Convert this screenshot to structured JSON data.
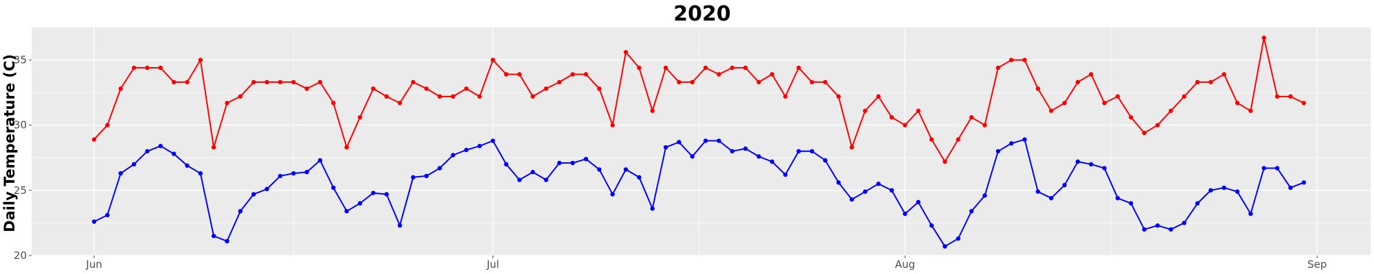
{
  "chart_data": {
    "type": "line",
    "title": "2020",
    "xlabel": "",
    "ylabel": "Daily Temperature (C)",
    "ylim": [
      20,
      37.5
    ],
    "y_ticks": [
      20,
      25,
      30,
      35
    ],
    "x_ticks": [
      {
        "label": "Jun",
        "day": 0
      },
      {
        "label": "Jul",
        "day": 30
      },
      {
        "label": "Aug",
        "day": 61
      },
      {
        "label": "Sep",
        "day": 92
      }
    ],
    "xlim_days": [
      -1.5,
      94
    ],
    "x_start_label": "Jun 1",
    "grid": true,
    "background": "#EBEBEB",
    "series": [
      {
        "color": "#FF0000",
        "values": [
          28.9,
          30.0,
          32.8,
          34.4,
          34.4,
          34.4,
          33.3,
          33.3,
          35.0,
          28.3,
          31.7,
          32.2,
          33.3,
          33.3,
          33.3,
          33.3,
          32.8,
          33.3,
          31.7,
          28.3,
          30.6,
          32.8,
          32.2,
          31.7,
          33.3,
          32.8,
          32.2,
          32.2,
          32.8,
          32.2,
          35.0,
          33.9,
          33.9,
          32.2,
          32.8,
          33.3,
          33.9,
          33.9,
          32.8,
          30.0,
          35.6,
          34.4,
          31.1,
          34.4,
          33.3,
          33.3,
          34.4,
          33.9,
          34.4,
          34.4,
          33.3,
          33.9,
          32.2,
          34.4,
          33.3,
          33.3,
          32.2,
          28.3,
          31.1,
          32.2,
          30.6,
          30.0,
          31.1,
          28.9,
          27.2,
          28.9,
          30.6,
          30.0,
          34.4,
          35.0,
          35.0,
          32.8,
          31.1,
          31.7,
          33.3,
          33.9,
          31.7,
          32.2,
          30.6,
          29.4,
          30.0,
          31.1,
          32.2,
          33.3,
          33.3,
          33.9,
          31.7,
          31.1,
          36.7,
          32.2,
          32.2,
          31.7
        ]
      },
      {
        "color": "#0000FF",
        "values": [
          22.6,
          23.1,
          26.3,
          27.0,
          28.0,
          28.4,
          27.8,
          26.9,
          26.3,
          21.5,
          21.1,
          23.4,
          24.7,
          25.1,
          26.1,
          26.3,
          26.4,
          27.3,
          25.2,
          23.4,
          24.0,
          24.8,
          24.7,
          22.3,
          26.0,
          26.1,
          26.7,
          27.7,
          28.1,
          28.4,
          28.8,
          27.0,
          25.8,
          26.4,
          25.8,
          27.1,
          27.1,
          27.4,
          26.6,
          24.7,
          26.6,
          26.0,
          23.6,
          28.3,
          28.7,
          27.6,
          28.8,
          28.8,
          28.0,
          28.2,
          27.6,
          27.2,
          26.2,
          28.0,
          28.0,
          27.3,
          25.6,
          24.3,
          24.9,
          25.5,
          25.0,
          23.2,
          24.1,
          22.3,
          20.7,
          21.3,
          23.4,
          24.6,
          28.0,
          28.6,
          28.9,
          24.9,
          24.4,
          25.4,
          27.2,
          27.0,
          26.7,
          24.4,
          24.0,
          22.0,
          22.3,
          22.0,
          22.5,
          24.0,
          25.0,
          25.2,
          24.9,
          23.2,
          26.7,
          26.7,
          25.2,
          25.6
        ]
      }
    ]
  }
}
